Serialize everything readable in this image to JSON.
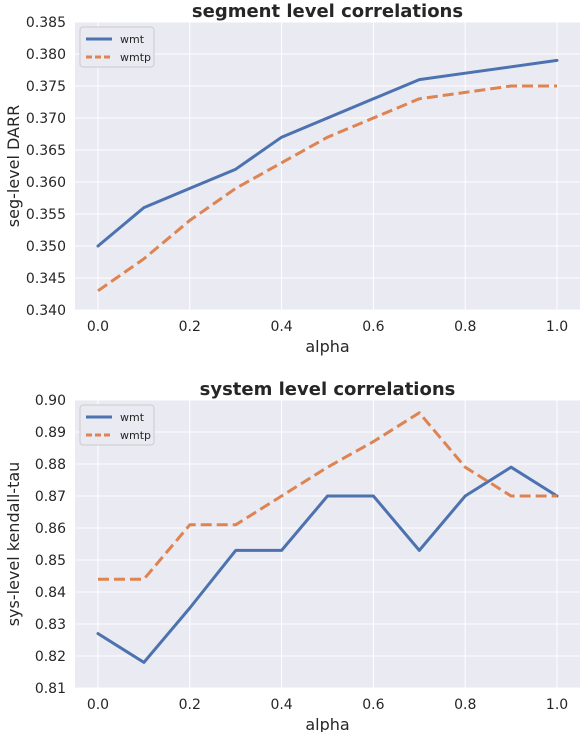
{
  "chart_data": [
    {
      "type": "line",
      "title": "segment level correlations",
      "xlabel": "alpha",
      "ylabel": "seg-level DARR",
      "x": [
        0.0,
        0.1,
        0.2,
        0.3,
        0.4,
        0.5,
        0.6,
        0.7,
        0.8,
        0.9,
        1.0
      ],
      "xlim": [
        -0.05,
        1.05
      ],
      "ylim": [
        0.34,
        0.385
      ],
      "xticks": [
        "0.0",
        "0.2",
        "0.4",
        "0.6",
        "0.8",
        "1.0"
      ],
      "yticks": [
        "0.340",
        "0.345",
        "0.350",
        "0.355",
        "0.360",
        "0.365",
        "0.370",
        "0.375",
        "0.380",
        "0.385"
      ],
      "grid": true,
      "legend_position": "top-left",
      "series": [
        {
          "name": "wmt",
          "color": "#4c72b0",
          "style": "solid",
          "values": [
            0.35,
            0.356,
            0.359,
            0.362,
            0.367,
            0.37,
            0.373,
            0.376,
            0.377,
            0.378,
            0.379
          ]
        },
        {
          "name": "wmtp",
          "color": "#dd8452",
          "style": "dashed",
          "values": [
            0.343,
            0.348,
            0.354,
            0.359,
            0.363,
            0.367,
            0.37,
            0.373,
            0.374,
            0.375,
            0.375
          ]
        }
      ]
    },
    {
      "type": "line",
      "title": "system level correlations",
      "xlabel": "alpha",
      "ylabel": "sys-level kendall-tau",
      "x": [
        0.0,
        0.1,
        0.2,
        0.3,
        0.4,
        0.5,
        0.6,
        0.7,
        0.8,
        0.9,
        1.0
      ],
      "xlim": [
        -0.05,
        1.05
      ],
      "ylim": [
        0.81,
        0.9
      ],
      "xticks": [
        "0.0",
        "0.2",
        "0.4",
        "0.6",
        "0.8",
        "1.0"
      ],
      "yticks": [
        "0.81",
        "0.82",
        "0.83",
        "0.84",
        "0.85",
        "0.86",
        "0.87",
        "0.88",
        "0.89",
        "0.90"
      ],
      "grid": true,
      "legend_position": "top-left",
      "series": [
        {
          "name": "wmt",
          "color": "#4c72b0",
          "style": "solid",
          "values": [
            0.827,
            0.818,
            0.835,
            0.853,
            0.853,
            0.87,
            0.87,
            0.853,
            0.87,
            0.879,
            0.87
          ]
        },
        {
          "name": "wmtp",
          "color": "#dd8452",
          "style": "dashed",
          "values": [
            0.844,
            0.844,
            0.861,
            0.861,
            0.87,
            0.879,
            0.887,
            0.896,
            0.879,
            0.87,
            0.87
          ]
        }
      ]
    }
  ]
}
